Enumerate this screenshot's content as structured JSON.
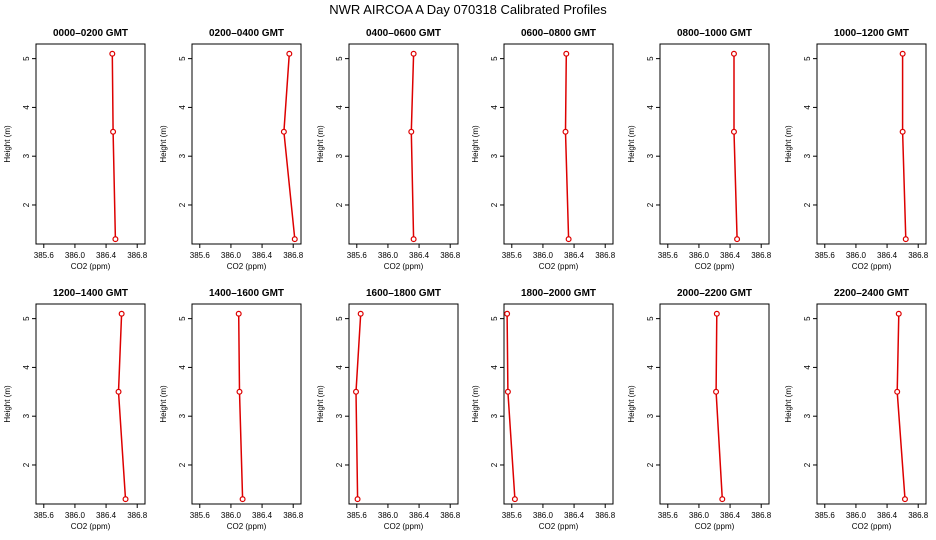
{
  "title": "NWR AIRCOA A  Day 070318  Calibrated Profiles",
  "colors": {
    "series": "#dd0000",
    "axis": "#000000",
    "background": "#ffffff"
  },
  "chart_data": [
    {
      "type": "line",
      "title": "0000–0200 GMT",
      "xlabel": "CO2 (ppm)",
      "ylabel": "Height (m)",
      "xlim": [
        385.5,
        386.9
      ],
      "ylim": [
        1.2,
        5.3
      ],
      "xticks": [
        "385.6",
        "386.0",
        "386.4",
        "386.8"
      ],
      "yticks": [
        "2",
        "3",
        "4",
        "5"
      ],
      "points": [
        {
          "x": 386.48,
          "y": 5.1
        },
        {
          "x": 386.49,
          "y": 3.5
        },
        {
          "x": 386.52,
          "y": 1.3
        }
      ]
    },
    {
      "type": "line",
      "title": "0200–0400 GMT",
      "xlabel": "CO2 (ppm)",
      "ylabel": "Height (m)",
      "xlim": [
        385.5,
        386.9
      ],
      "ylim": [
        1.2,
        5.3
      ],
      "xticks": [
        "385.6",
        "386.0",
        "386.4",
        "386.8"
      ],
      "yticks": [
        "2",
        "3",
        "4",
        "5"
      ],
      "points": [
        {
          "x": 386.75,
          "y": 5.1
        },
        {
          "x": 386.68,
          "y": 3.5
        },
        {
          "x": 386.82,
          "y": 1.3
        }
      ]
    },
    {
      "type": "line",
      "title": "0400–0600 GMT",
      "xlabel": "CO2 (ppm)",
      "ylabel": "Height (m)",
      "xlim": [
        385.5,
        386.9
      ],
      "ylim": [
        1.2,
        5.3
      ],
      "xticks": [
        "385.6",
        "386.0",
        "386.4",
        "386.8"
      ],
      "yticks": [
        "2",
        "3",
        "4",
        "5"
      ],
      "points": [
        {
          "x": 386.33,
          "y": 5.1
        },
        {
          "x": 386.3,
          "y": 3.5
        },
        {
          "x": 386.33,
          "y": 1.3
        }
      ]
    },
    {
      "type": "line",
      "title": "0600–0800 GMT",
      "xlabel": "CO2 (ppm)",
      "ylabel": "Height (m)",
      "xlim": [
        385.5,
        386.9
      ],
      "ylim": [
        1.2,
        5.3
      ],
      "xticks": [
        "385.6",
        "386.0",
        "386.4",
        "386.8"
      ],
      "yticks": [
        "2",
        "3",
        "4",
        "5"
      ],
      "points": [
        {
          "x": 386.3,
          "y": 5.1
        },
        {
          "x": 386.29,
          "y": 3.5
        },
        {
          "x": 386.33,
          "y": 1.3
        }
      ]
    },
    {
      "type": "line",
      "title": "0800–1000 GMT",
      "xlabel": "CO2 (ppm)",
      "ylabel": "Height (m)",
      "xlim": [
        385.5,
        386.9
      ],
      "ylim": [
        1.2,
        5.3
      ],
      "xticks": [
        "385.6",
        "386.0",
        "386.4",
        "386.8"
      ],
      "yticks": [
        "2",
        "3",
        "4",
        "5"
      ],
      "points": [
        {
          "x": 386.45,
          "y": 5.1
        },
        {
          "x": 386.45,
          "y": 3.5
        },
        {
          "x": 386.49,
          "y": 1.3
        }
      ]
    },
    {
      "type": "line",
      "title": "1000–1200 GMT",
      "xlabel": "CO2 (ppm)",
      "ylabel": "Height (m)",
      "xlim": [
        385.5,
        386.9
      ],
      "ylim": [
        1.2,
        5.3
      ],
      "xticks": [
        "385.6",
        "386.0",
        "386.4",
        "386.8"
      ],
      "yticks": [
        "2",
        "3",
        "4",
        "5"
      ],
      "points": [
        {
          "x": 386.6,
          "y": 5.1
        },
        {
          "x": 386.6,
          "y": 3.5
        },
        {
          "x": 386.64,
          "y": 1.3
        }
      ]
    },
    {
      "type": "line",
      "title": "1200–1400 GMT",
      "xlabel": "CO2 (ppm)",
      "ylabel": "Height (m)",
      "xlim": [
        385.5,
        386.9
      ],
      "ylim": [
        1.2,
        5.3
      ],
      "xticks": [
        "385.6",
        "386.0",
        "386.4",
        "386.8"
      ],
      "yticks": [
        "2",
        "3",
        "4",
        "5"
      ],
      "points": [
        {
          "x": 386.6,
          "y": 5.1
        },
        {
          "x": 386.56,
          "y": 3.5
        },
        {
          "x": 386.65,
          "y": 1.3
        }
      ]
    },
    {
      "type": "line",
      "title": "1400–1600 GMT",
      "xlabel": "CO2 (ppm)",
      "ylabel": "Height (m)",
      "xlim": [
        385.5,
        386.9
      ],
      "ylim": [
        1.2,
        5.3
      ],
      "xticks": [
        "385.6",
        "386.0",
        "386.4",
        "386.8"
      ],
      "yticks": [
        "2",
        "3",
        "4",
        "5"
      ],
      "points": [
        {
          "x": 386.1,
          "y": 5.1
        },
        {
          "x": 386.11,
          "y": 3.5
        },
        {
          "x": 386.15,
          "y": 1.3
        }
      ]
    },
    {
      "type": "line",
      "title": "1600–1800 GMT",
      "xlabel": "CO2 (ppm)",
      "ylabel": "Height (m)",
      "xlim": [
        385.5,
        386.9
      ],
      "ylim": [
        1.2,
        5.3
      ],
      "xticks": [
        "385.6",
        "386.0",
        "386.4",
        "386.8"
      ],
      "yticks": [
        "2",
        "3",
        "4",
        "5"
      ],
      "points": [
        {
          "x": 385.65,
          "y": 5.1
        },
        {
          "x": 385.59,
          "y": 3.5
        },
        {
          "x": 385.61,
          "y": 1.3
        }
      ]
    },
    {
      "type": "line",
      "title": "1800–2000 GMT",
      "xlabel": "CO2 (ppm)",
      "ylabel": "Height (m)",
      "xlim": [
        385.5,
        386.9
      ],
      "ylim": [
        1.2,
        5.3
      ],
      "xticks": [
        "385.6",
        "386.0",
        "386.4",
        "386.8"
      ],
      "yticks": [
        "2",
        "3",
        "4",
        "5"
      ],
      "points": [
        {
          "x": 385.54,
          "y": 5.1
        },
        {
          "x": 385.55,
          "y": 3.5
        },
        {
          "x": 385.64,
          "y": 1.3
        }
      ]
    },
    {
      "type": "line",
      "title": "2000–2200 GMT",
      "xlabel": "CO2 (ppm)",
      "ylabel": "Height (m)",
      "xlim": [
        385.5,
        386.9
      ],
      "ylim": [
        1.2,
        5.3
      ],
      "xticks": [
        "385.6",
        "386.0",
        "386.4",
        "386.8"
      ],
      "yticks": [
        "2",
        "3",
        "4",
        "5"
      ],
      "points": [
        {
          "x": 386.23,
          "y": 5.1
        },
        {
          "x": 386.22,
          "y": 3.5
        },
        {
          "x": 386.3,
          "y": 1.3
        }
      ]
    },
    {
      "type": "line",
      "title": "2200–2400 GMT",
      "xlabel": "CO2 (ppm)",
      "ylabel": "Height (m)",
      "xlim": [
        385.5,
        386.9
      ],
      "ylim": [
        1.2,
        5.3
      ],
      "xticks": [
        "385.6",
        "386.0",
        "386.4",
        "386.8"
      ],
      "yticks": [
        "2",
        "3",
        "4",
        "5"
      ],
      "points": [
        {
          "x": 386.55,
          "y": 5.1
        },
        {
          "x": 386.53,
          "y": 3.5
        },
        {
          "x": 386.63,
          "y": 1.3
        }
      ]
    }
  ]
}
